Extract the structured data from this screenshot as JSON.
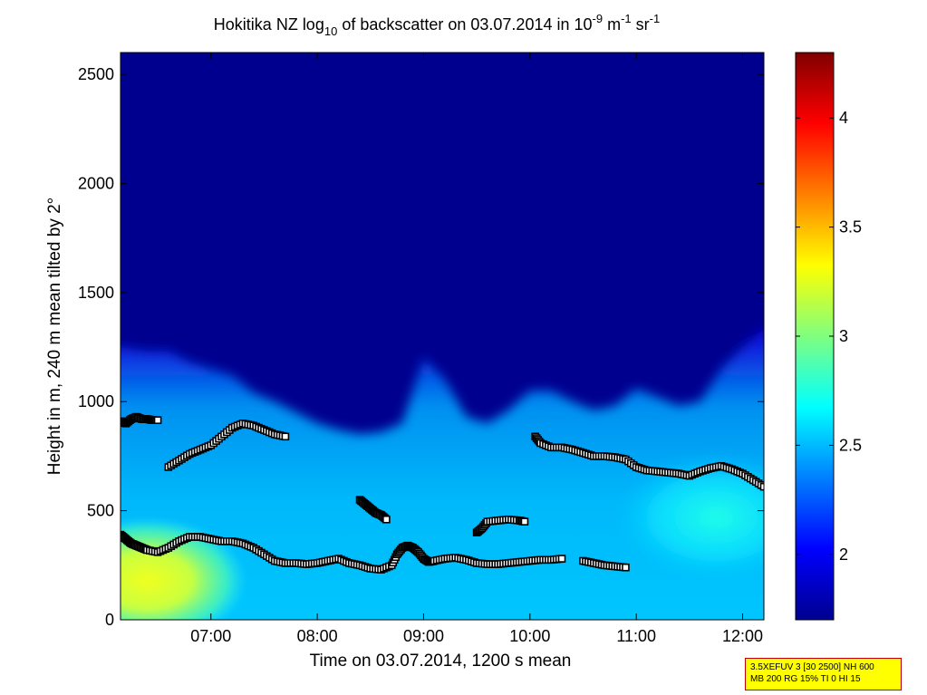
{
  "chart_data": {
    "type": "heatmap",
    "title": {
      "p1": "Hokitika NZ log",
      "sub": "10",
      "p2": " of backscatter on 03.07.2014 in 10",
      "sup1": "-9",
      "p3": " m",
      "sup2": "-1",
      "p4": " sr",
      "sup3": "-1"
    },
    "xlabel": "Time on 03.07.2014, 1200 s mean",
    "ylabel": "Height in m, 240 m mean tilted by 2°",
    "xlim": [
      6.15,
      12.2
    ],
    "ylim": [
      0,
      2600
    ],
    "xticks": [
      {
        "value": 7,
        "label": "07:00"
      },
      {
        "value": 8,
        "label": "08:00"
      },
      {
        "value": 9,
        "label": "09:00"
      },
      {
        "value": 10,
        "label": "10:00"
      },
      {
        "value": 11,
        "label": "11:00"
      },
      {
        "value": 12,
        "label": "12:00"
      }
    ],
    "yticks": [
      {
        "value": 0,
        "label": "0"
      },
      {
        "value": 500,
        "label": "500"
      },
      {
        "value": 1000,
        "label": "1000"
      },
      {
        "value": 1500,
        "label": "1500"
      },
      {
        "value": 2000,
        "label": "2000"
      },
      {
        "value": 2500,
        "label": "2500"
      }
    ],
    "colorbar": {
      "colormap": "jet",
      "clim": [
        1.7,
        4.3
      ],
      "ticks": [
        {
          "value": 2,
          "label": "2"
        },
        {
          "value": 2.5,
          "label": "2.5"
        },
        {
          "value": 3,
          "label": "3"
        },
        {
          "value": 3.5,
          "label": "3.5"
        },
        {
          "value": 4,
          "label": "4"
        }
      ]
    },
    "aerosol_top_height": {
      "times": [
        6.15,
        6.4,
        6.6,
        6.8,
        7.0,
        7.2,
        7.4,
        7.6,
        7.8,
        8.0,
        8.2,
        8.4,
        8.6,
        8.8,
        9.0,
        9.2,
        9.4,
        9.6,
        9.8,
        10.0,
        10.2,
        10.4,
        10.6,
        10.8,
        11.0,
        11.2,
        11.4,
        11.6,
        11.8,
        12.0,
        12.2
      ],
      "heights": [
        1250,
        1230,
        1230,
        1180,
        1150,
        1120,
        1040,
        1000,
        950,
        900,
        870,
        850,
        860,
        900,
        1200,
        1100,
        930,
        900,
        960,
        1050,
        1050,
        1000,
        960,
        980,
        1060,
        1020,
        980,
        1000,
        1150,
        1250,
        1330
      ]
    },
    "surface_maximum": {
      "time": 6.4,
      "height": 180,
      "value": 3.2
    },
    "series": [
      {
        "x": [
          6.15,
          6.2,
          6.25,
          6.3,
          6.35,
          6.4,
          6.5,
          6.6,
          6.7,
          6.8,
          6.9,
          7.0,
          7.1,
          7.2,
          7.3,
          7.4,
          7.5,
          7.6,
          7.7,
          7.8,
          7.9,
          8.0,
          8.1,
          8.2,
          8.3,
          8.4,
          8.5,
          8.6,
          8.7,
          8.75,
          8.8,
          8.85,
          8.9,
          8.95,
          9.0,
          9.05,
          9.1,
          9.2,
          9.3,
          9.4,
          9.5,
          9.6,
          9.7,
          9.8,
          9.9,
          10.0,
          10.1,
          10.2,
          10.3
        ],
        "y": [
          390,
          370,
          350,
          340,
          330,
          320,
          310,
          330,
          360,
          380,
          380,
          370,
          360,
          360,
          350,
          330,
          300,
          270,
          260,
          260,
          255,
          260,
          270,
          280,
          260,
          250,
          235,
          230,
          250,
          300,
          330,
          340,
          330,
          310,
          280,
          265,
          270,
          280,
          285,
          275,
          260,
          255,
          255,
          260,
          265,
          270,
          275,
          275,
          280
        ]
      },
      {
        "x": [
          10.5,
          10.6,
          10.7,
          10.8,
          10.9
        ],
        "y": [
          270,
          260,
          250,
          245,
          240
        ]
      },
      {
        "x": [
          6.15,
          6.2,
          6.25,
          6.3,
          6.35,
          6.4,
          6.45,
          6.5
        ],
        "y": [
          910,
          900,
          920,
          930,
          920,
          920,
          915,
          915
        ]
      },
      {
        "x": [
          6.6,
          6.7,
          6.8,
          6.9,
          7.0,
          7.1,
          7.2,
          7.3,
          7.4,
          7.5,
          7.6,
          7.7
        ],
        "y": [
          700,
          730,
          760,
          780,
          800,
          840,
          880,
          900,
          890,
          870,
          850,
          840
        ]
      },
      {
        "x": [
          8.4,
          8.45,
          8.5,
          8.55,
          8.6,
          8.65
        ],
        "y": [
          550,
          530,
          510,
          490,
          480,
          460
        ]
      },
      {
        "x": [
          9.5,
          9.55,
          9.6,
          9.7,
          9.8,
          9.9,
          9.95
        ],
        "y": [
          400,
          420,
          450,
          455,
          460,
          455,
          450
        ]
      },
      {
        "x": [
          10.05,
          10.1,
          10.2,
          10.3,
          10.4,
          10.5,
          10.6,
          10.7,
          10.8,
          10.9,
          11.0,
          11.1,
          11.2,
          11.3,
          11.4,
          11.5,
          11.6,
          11.7,
          11.8,
          11.9,
          12.0,
          12.1,
          12.2
        ],
        "y": [
          840,
          810,
          790,
          790,
          780,
          765,
          750,
          750,
          745,
          735,
          700,
          685,
          680,
          675,
          670,
          660,
          680,
          695,
          705,
          690,
          670,
          640,
          610
        ]
      }
    ]
  },
  "info_box": {
    "line1": "3.5XEFUV 3 [30 2500] NH 600",
    "line2": "MB 200 RG 15% TI 0 HI 15"
  }
}
